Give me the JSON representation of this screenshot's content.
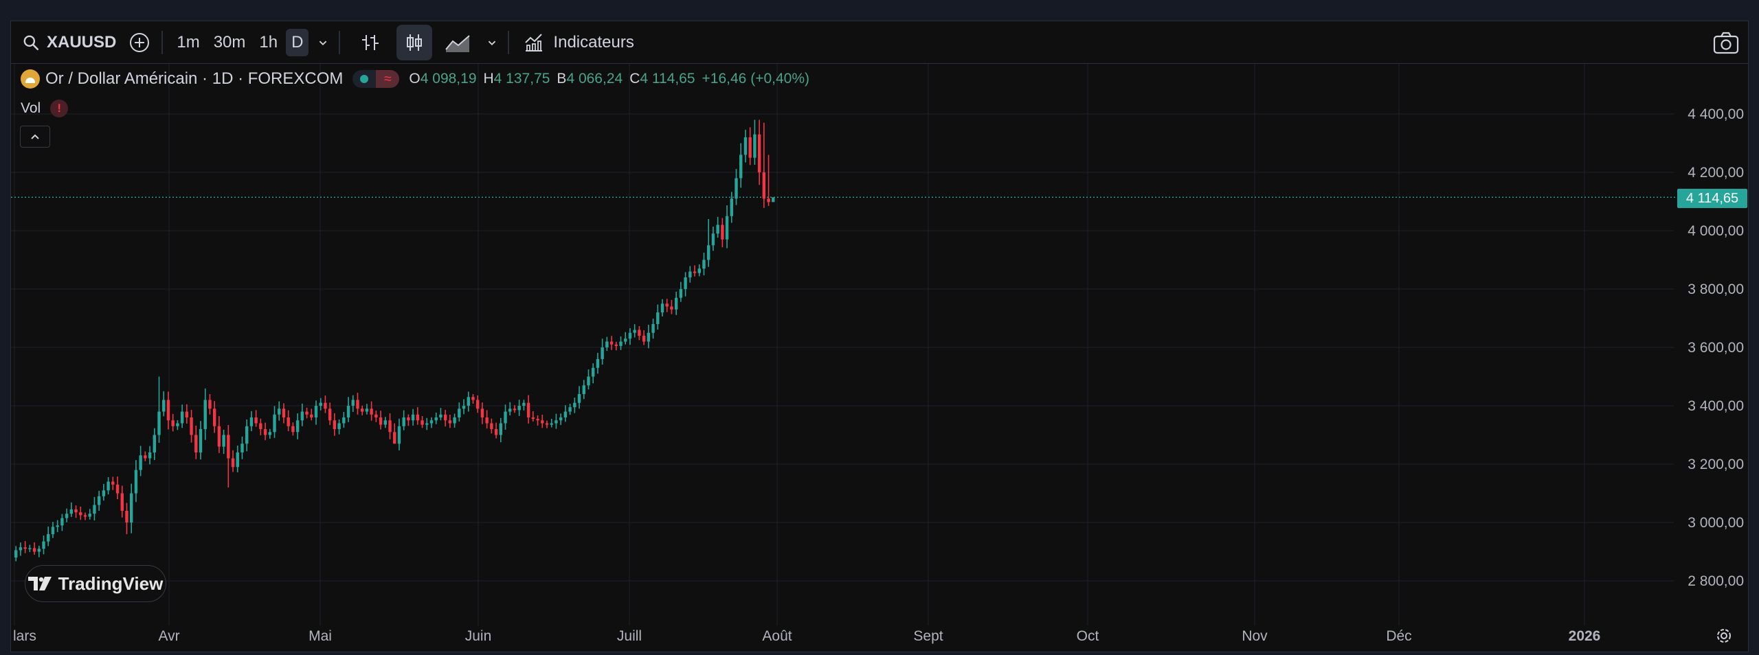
{
  "toolbar": {
    "symbol": "XAUUSD",
    "intervals": [
      "1m",
      "30m",
      "1h",
      "D"
    ],
    "active_interval": "D",
    "indicators_label": "Indicateurs"
  },
  "legend": {
    "title": "Or / Dollar Américain · 1D · FOREXCOM",
    "open_key": "O",
    "open": "4 098,19",
    "high_key": "H",
    "high": "4 137,75",
    "low_key": "B",
    "low": "4 066,24",
    "close_key": "C",
    "close": "4 114,65",
    "change": "+16,46 (+0,40%)"
  },
  "volume": {
    "label": "Vol",
    "warning": "!"
  },
  "last_price_tag": "4 114,65",
  "branding": {
    "logo_text": "TradingView"
  },
  "colors": {
    "up": "#26a69a",
    "down": "#f23645",
    "background": "#0f0f0f",
    "grid": "#1e222d"
  },
  "chart_data": {
    "type": "candlestick",
    "y_tick_labels": [
      "4 400,00",
      "4 200,00",
      "4 000,00",
      "3 800,00",
      "3 600,00",
      "3 400,00",
      "3 200,00",
      "3 000,00",
      "2 800,00"
    ],
    "y_tick_values": [
      4400,
      4200,
      4000,
      3800,
      3600,
      3400,
      3200,
      3000,
      2800
    ],
    "ylim": [
      2680,
      4510
    ],
    "x_tick_labels": [
      "lars",
      "Avr",
      "Mai",
      "Juin",
      "Juill",
      "Août",
      "Sept",
      "Oct",
      "Nov",
      "Déc",
      "2026"
    ],
    "last_price": 4114.65,
    "closes": [
      2905,
      2915,
      2910,
      2912,
      2900,
      2910,
      2935,
      2960,
      2985,
      2990,
      3015,
      3030,
      3045,
      3035,
      3025,
      3020,
      3030,
      3060,
      3090,
      3110,
      3140,
      3130,
      3100,
      3040,
      3000,
      3100,
      3180,
      3230,
      3220,
      3240,
      3300,
      3380,
      3420,
      3350,
      3330,
      3340,
      3380,
      3360,
      3300,
      3240,
      3320,
      3420,
      3390,
      3330,
      3260,
      3300,
      3220,
      3190,
      3240,
      3270,
      3330,
      3360,
      3340,
      3320,
      3300,
      3310,
      3370,
      3390,
      3360,
      3330,
      3310,
      3350,
      3380,
      3370,
      3360,
      3400,
      3410,
      3390,
      3350,
      3320,
      3340,
      3360,
      3400,
      3420,
      3390,
      3380,
      3390,
      3370,
      3360,
      3335,
      3350,
      3310,
      3270,
      3330,
      3360,
      3350,
      3370,
      3350,
      3335,
      3340,
      3350,
      3360,
      3370,
      3350,
      3340,
      3360,
      3390,
      3400,
      3430,
      3420,
      3390,
      3360,
      3340,
      3320,
      3300,
      3340,
      3380,
      3390,
      3385,
      3400,
      3410,
      3360,
      3355,
      3350,
      3340,
      3335,
      3340,
      3350,
      3360,
      3380,
      3395,
      3410,
      3440,
      3470,
      3500,
      3530,
      3560,
      3600,
      3620,
      3610,
      3605,
      3620,
      3630,
      3650,
      3660,
      3640,
      3620,
      3650,
      3680,
      3720,
      3750,
      3740,
      3730,
      3770,
      3800,
      3840,
      3860,
      3855,
      3870,
      3900,
      3950,
      3990,
      4020,
      3970,
      4050,
      4110,
      4180,
      4260,
      4320,
      4250,
      4330,
      4200,
      4110,
      4098,
      4114.65
    ]
  }
}
